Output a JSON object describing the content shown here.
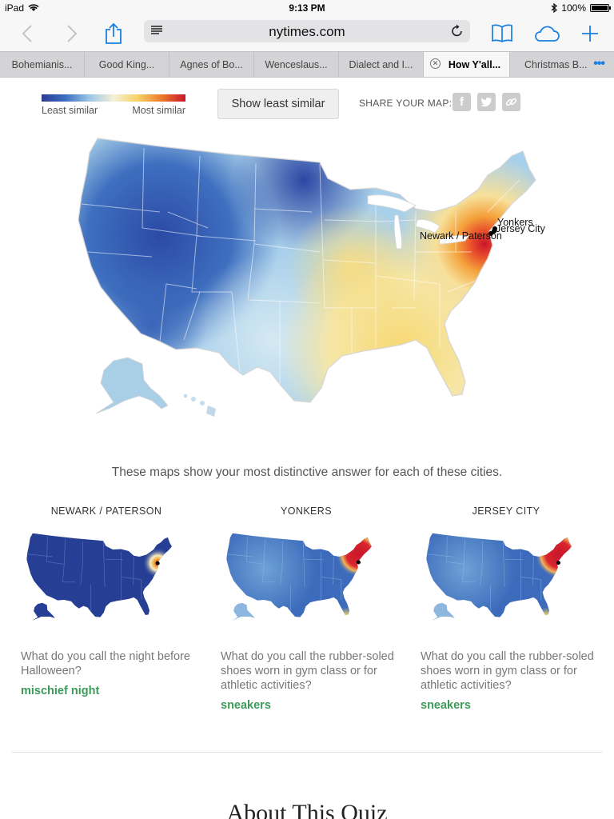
{
  "status": {
    "device": "iPad",
    "time": "9:13 PM",
    "battery": "100%",
    "battery_level": 1.0
  },
  "browser": {
    "url": "nytimes.com",
    "tabs": [
      {
        "label": "Bohemianis..."
      },
      {
        "label": "Good King..."
      },
      {
        "label": "Agnes of Bo..."
      },
      {
        "label": "Wenceslaus..."
      },
      {
        "label": "Dialect and I..."
      },
      {
        "label": "How Y'all...",
        "active": true
      },
      {
        "label": "Christmas B..."
      }
    ]
  },
  "legend": {
    "least": "Least similar",
    "most": "Most similar"
  },
  "toggle_button": "Show least similar",
  "share": {
    "label": "SHARE YOUR MAP:",
    "icons": [
      "facebook-icon",
      "twitter-icon",
      "link-icon"
    ]
  },
  "main_map": {
    "cities": [
      {
        "name": "Yonkers"
      },
      {
        "name": "Jersey City"
      },
      {
        "name": "Newark / Paterson"
      }
    ]
  },
  "caption": "These maps show your most distinctive answer for each of these cities.",
  "city_maps": [
    {
      "city": "NEWARK / PATERSON",
      "question": "What do you call the night before Halloween?",
      "answer": "mischief night"
    },
    {
      "city": "YONKERS",
      "question": "What do you call the rubber-soled shoes worn in gym class or for athletic activities?",
      "answer": "sneakers"
    },
    {
      "city": "JERSEY CITY",
      "question": "What do you call the rubber-soled shoes worn in gym class or for athletic activities?",
      "answer": "sneakers"
    }
  ],
  "next_section": "About This Quiz"
}
